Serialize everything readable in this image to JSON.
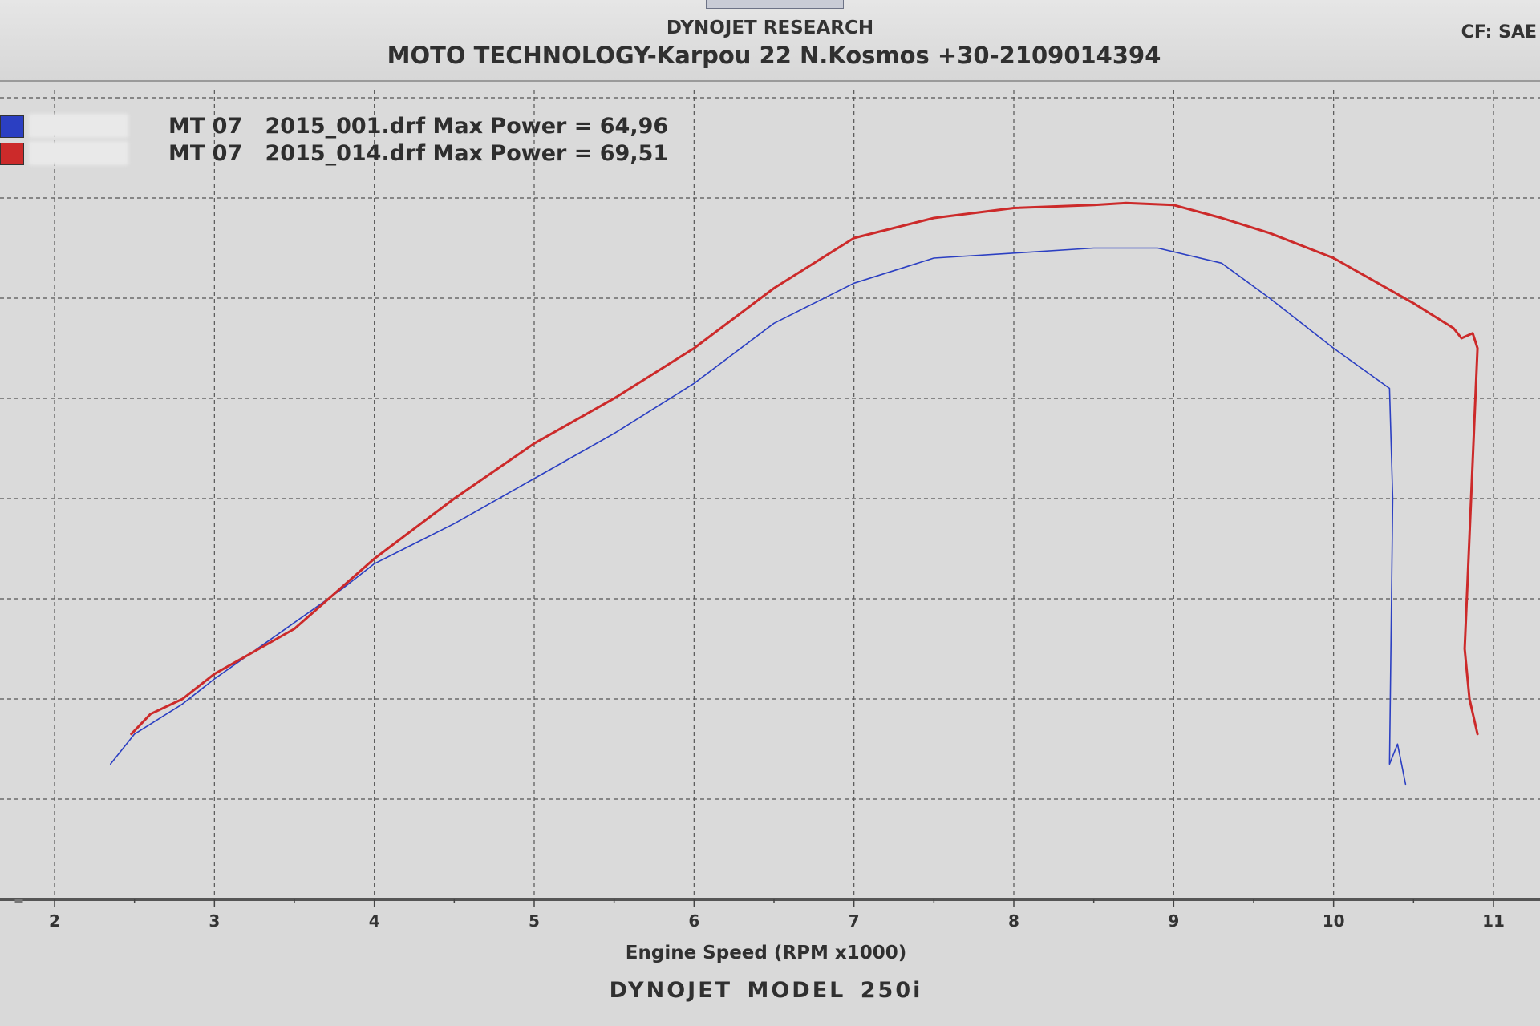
{
  "header": {
    "company": "DYNOJET RESEARCH",
    "shop": "MOTO TECHNOLOGY-Karpou 22 N.Kosmos +30-2109014394",
    "correction": "CF: SAE"
  },
  "footer": {
    "model": "DYNOJET MODEL 250i"
  },
  "chart_data": {
    "type": "line",
    "title": "",
    "xlabel": "Engine Speed (RPM x1000)",
    "ylabel": "",
    "xlim": [
      2,
      11
    ],
    "ylim": [
      0,
      80
    ],
    "x_ticks": [
      "2",
      "3",
      "4",
      "5",
      "6",
      "7",
      "8",
      "9",
      "10",
      "11"
    ],
    "grid": true,
    "legend_position": "top-left",
    "series": [
      {
        "name": "MT 07   2015_001.drf Max Power = 64,96",
        "color": "#2b3fc2",
        "line_width": 1.6,
        "points": [
          [
            2.35,
            13.5
          ],
          [
            2.5,
            16.5
          ],
          [
            2.8,
            19.5
          ],
          [
            3.0,
            22
          ],
          [
            3.4,
            26.5
          ],
          [
            3.8,
            31
          ],
          [
            4.0,
            33.5
          ],
          [
            4.5,
            37.5
          ],
          [
            5.0,
            42
          ],
          [
            5.5,
            46.5
          ],
          [
            6.0,
            51.5
          ],
          [
            6.5,
            57.5
          ],
          [
            7.0,
            61.5
          ],
          [
            7.5,
            64
          ],
          [
            8.0,
            64.5
          ],
          [
            8.5,
            65
          ],
          [
            8.9,
            65
          ],
          [
            9.3,
            63.5
          ],
          [
            9.6,
            60
          ],
          [
            10.0,
            55
          ],
          [
            10.35,
            51
          ],
          [
            10.37,
            40
          ],
          [
            10.35,
            13.5
          ],
          [
            10.4,
            15.5
          ],
          [
            10.45,
            11.5
          ]
        ]
      },
      {
        "name": "MT 07   2015_014.drf Max Power = 69,51",
        "color": "#cc2a2a",
        "line_width": 3,
        "points": [
          [
            2.48,
            16.5
          ],
          [
            2.6,
            18.5
          ],
          [
            2.8,
            20
          ],
          [
            3.0,
            22.5
          ],
          [
            3.5,
            27
          ],
          [
            4.0,
            34
          ],
          [
            4.5,
            40
          ],
          [
            5.0,
            45.5
          ],
          [
            5.5,
            50
          ],
          [
            6.0,
            55
          ],
          [
            6.5,
            61
          ],
          [
            7.0,
            66
          ],
          [
            7.5,
            68
          ],
          [
            8.0,
            69
          ],
          [
            8.5,
            69.3
          ],
          [
            8.7,
            69.5
          ],
          [
            9.0,
            69.3
          ],
          [
            9.3,
            68
          ],
          [
            9.6,
            66.5
          ],
          [
            10.0,
            64
          ],
          [
            10.5,
            59.5
          ],
          [
            10.75,
            57
          ],
          [
            10.8,
            56
          ],
          [
            10.87,
            56.5
          ],
          [
            10.9,
            55
          ],
          [
            10.86,
            40
          ],
          [
            10.82,
            25
          ],
          [
            10.85,
            20
          ],
          [
            10.9,
            16.5
          ]
        ]
      }
    ]
  }
}
